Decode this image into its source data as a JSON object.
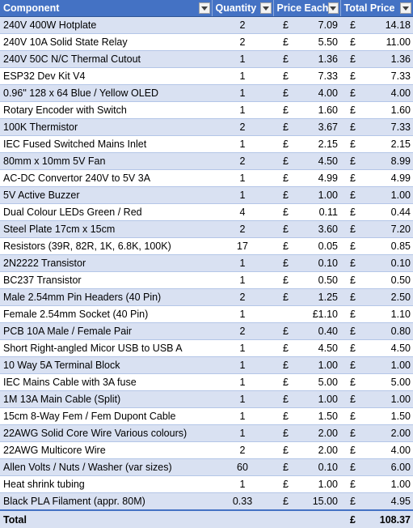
{
  "headers": {
    "component": "Component",
    "quantity": "Quantity",
    "price_each": "Price Each",
    "total_price": "Total Price"
  },
  "currency_symbol": "£",
  "rows": [
    {
      "component": "240V 400W Hotplate",
      "quantity": "2",
      "price_each_currency": "£",
      "price_each": "7.09",
      "total_price": "14.18"
    },
    {
      "component": "240V 10A Solid State Relay",
      "quantity": "2",
      "price_each_currency": "£",
      "price_each": "5.50",
      "total_price": "11.00"
    },
    {
      "component": "240V 50C N/C Thermal Cutout",
      "quantity": "1",
      "price_each_currency": "£",
      "price_each": "1.36",
      "total_price": "1.36"
    },
    {
      "component": "ESP32 Dev Kit V4",
      "quantity": "1",
      "price_each_currency": "£",
      "price_each": "7.33",
      "total_price": "7.33"
    },
    {
      "component": "0.96\" 128 x 64 Blue / Yellow OLED",
      "quantity": "1",
      "price_each_currency": "£",
      "price_each": "4.00",
      "total_price": "4.00"
    },
    {
      "component": "Rotary Encoder with Switch",
      "quantity": "1",
      "price_each_currency": "£",
      "price_each": "1.60",
      "total_price": "1.60"
    },
    {
      "component": "100K Thermistor",
      "quantity": "2",
      "price_each_currency": "£",
      "price_each": "3.67",
      "total_price": "7.33"
    },
    {
      "component": "IEC Fused Switched Mains Inlet",
      "quantity": "1",
      "price_each_currency": "£",
      "price_each": "2.15",
      "total_price": "2.15"
    },
    {
      "component": "80mm x 10mm 5V Fan",
      "quantity": "2",
      "price_each_currency": "£",
      "price_each": "4.50",
      "total_price": "8.99"
    },
    {
      "component": "AC-DC Convertor 240V to 5V 3A",
      "quantity": "1",
      "price_each_currency": "£",
      "price_each": "4.99",
      "total_price": "4.99"
    },
    {
      "component": "5V Active Buzzer",
      "quantity": "1",
      "price_each_currency": "£",
      "price_each": "1.00",
      "total_price": "1.00"
    },
    {
      "component": "Dual Colour LEDs Green / Red",
      "quantity": "4",
      "price_each_currency": "£",
      "price_each": "0.11",
      "total_price": "0.44"
    },
    {
      "component": "Steel Plate 17cm x 15cm",
      "quantity": "2",
      "price_each_currency": "£",
      "price_each": "3.60",
      "total_price": "7.20"
    },
    {
      "component": "Resistors (39R, 82R, 1K, 6.8K, 100K)",
      "quantity": "17",
      "price_each_currency": "£",
      "price_each": "0.05",
      "total_price": "0.85"
    },
    {
      "component": "2N2222 Transistor",
      "quantity": "1",
      "price_each_currency": "£",
      "price_each": "0.10",
      "total_price": "0.10"
    },
    {
      "component": "BC237 Transistor",
      "quantity": "1",
      "price_each_currency": "£",
      "price_each": "0.50",
      "total_price": "0.50"
    },
    {
      "component": "Male 2.54mm Pin Headers (40 Pin)",
      "quantity": "2",
      "price_each_currency": "£",
      "price_each": "1.25",
      "total_price": "2.50"
    },
    {
      "component": "Female 2.54mm Socket (40 Pin)",
      "quantity": "1",
      "price_each_currency": "",
      "price_each": "£1.10",
      "total_price": "1.10"
    },
    {
      "component": "PCB 10A Male / Female Pair",
      "quantity": "2",
      "price_each_currency": "£",
      "price_each": "0.40",
      "total_price": "0.80"
    },
    {
      "component": "Short Right-angled Micor USB to USB A",
      "quantity": "1",
      "price_each_currency": "£",
      "price_each": "4.50",
      "total_price": "4.50"
    },
    {
      "component": "10 Way 5A Terminal Block",
      "quantity": "1",
      "price_each_currency": "£",
      "price_each": "1.00",
      "total_price": "1.00"
    },
    {
      "component": "IEC Mains Cable with 3A fuse",
      "quantity": "1",
      "price_each_currency": "£",
      "price_each": "5.00",
      "total_price": "5.00"
    },
    {
      "component": "1M 13A Main Cable (Split)",
      "quantity": "1",
      "price_each_currency": "£",
      "price_each": "1.00",
      "total_price": "1.00"
    },
    {
      "component": "15cm 8-Way Fem / Fem Dupont Cable",
      "quantity": "1",
      "price_each_currency": "£",
      "price_each": "1.50",
      "total_price": "1.50"
    },
    {
      "component": "22AWG Solid Core Wire Various colours)",
      "quantity": "1",
      "price_each_currency": "£",
      "price_each": "2.00",
      "total_price": "2.00"
    },
    {
      "component": "22AWG Multicore Wire",
      "quantity": "2",
      "price_each_currency": "£",
      "price_each": "2.00",
      "total_price": "4.00"
    },
    {
      "component": "Allen Volts / Nuts / Washer (var sizes)",
      "quantity": "60",
      "price_each_currency": "£",
      "price_each": "0.10",
      "total_price": "6.00"
    },
    {
      "component": "Heat shrink tubing",
      "quantity": "1",
      "price_each_currency": "£",
      "price_each": "1.00",
      "total_price": "1.00"
    },
    {
      "component": "Black PLA Filament (appr. 80M)",
      "quantity": "0.33",
      "price_each_currency": "£",
      "price_each": "15.00",
      "total_price": "4.95"
    }
  ],
  "total": {
    "label": "Total",
    "value": "108.37"
  },
  "colors": {
    "header_bg": "#4472c4",
    "band_bg": "#d9e1f2",
    "border": "#b4c6e7"
  },
  "icons": {
    "filter": "filter-dropdown-icon"
  }
}
